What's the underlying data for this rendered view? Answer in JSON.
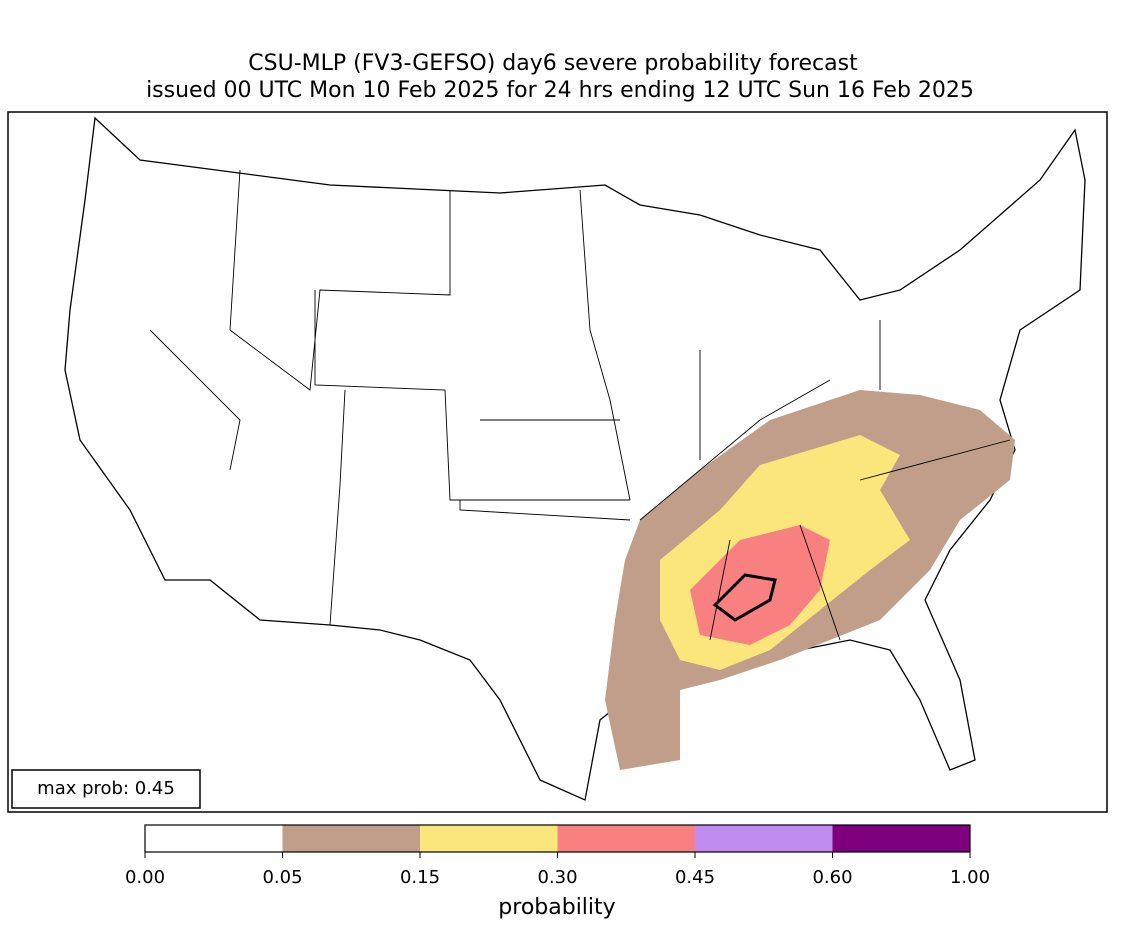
{
  "map": {
    "title": [
      "CSU-MLP (FV3-GEFSO) day6 severe probability forecast",
      "issued 00 UTC Mon 10 Feb 2025 for 24 hrs ending 12 UTC Sun 16 Feb 2025"
    ],
    "annotation": "max prob: 0.45",
    "colorbar": {
      "label": "probability",
      "ticks": [
        {
          "value": 0,
          "label": "0.00"
        },
        {
          "value": 0.05,
          "label": "0.05"
        },
        {
          "value": 0.15,
          "label": "0.15"
        },
        {
          "value": 0.3,
          "label": "0.30"
        },
        {
          "value": 0.45,
          "label": "0.45"
        },
        {
          "value": 0.6,
          "label": "0.60"
        },
        {
          "value": 1,
          "label": "1.00"
        }
      ],
      "colors": [
        "#ffffff",
        "#c19e8a",
        "#fbe67c",
        "#f98080",
        "#c08cf0",
        "#7f007f"
      ]
    }
  }
}
